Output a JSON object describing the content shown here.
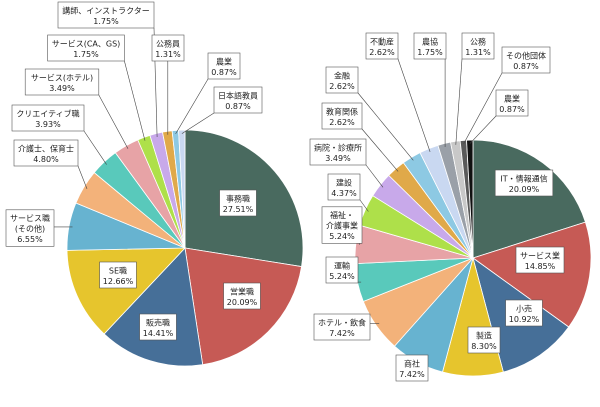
{
  "chart_data": [
    {
      "type": "pie",
      "title": "",
      "series": [
        {
          "label": "事務職",
          "value": 27.51,
          "value_label": "27.51%",
          "color": "#496a5f"
        },
        {
          "label": "営業職",
          "value": 20.09,
          "value_label": "20.09%",
          "color": "#c65a55"
        },
        {
          "label": "販売職",
          "value": 14.41,
          "value_label": "14.41%",
          "color": "#466f98"
        },
        {
          "label": "SE職",
          "value": 12.66,
          "value_label": "12.66%",
          "color": "#e6c52d"
        },
        {
          "label": "サービス職\n(その他)",
          "value": 6.55,
          "value_label": "6.55%",
          "color": "#67b3d0"
        },
        {
          "label": "介護士、保育士",
          "value": 4.8,
          "value_label": "4.80%",
          "color": "#f3b27a"
        },
        {
          "label": "クリエイティブ職",
          "value": 3.93,
          "value_label": "3.93%",
          "color": "#59c9bb"
        },
        {
          "label": "サービス(ホテル)",
          "value": 3.49,
          "value_label": "3.49%",
          "color": "#e7a3a6"
        },
        {
          "label": "サービス(CA、GS)",
          "value": 1.75,
          "value_label": "1.75%",
          "color": "#aee04a"
        },
        {
          "label": "講師、インストラクター",
          "value": 1.75,
          "value_label": "1.75%",
          "color": "#c8a9ea"
        },
        {
          "label": "公務員",
          "value": 1.31,
          "value_label": "1.31%",
          "color": "#e0a949"
        },
        {
          "label": "農業",
          "value": 0.87,
          "value_label": "0.87%",
          "color": "#8dc9e3"
        },
        {
          "label": "日本語教員",
          "value": 0.87,
          "value_label": "0.87%",
          "color": "#c9d8f1"
        }
      ]
    },
    {
      "type": "pie",
      "title": "",
      "series": [
        {
          "label": "IT・情報通信",
          "value": 20.09,
          "value_label": "20.09%",
          "color": "#496a5f"
        },
        {
          "label": "サービス業",
          "value": 14.85,
          "value_label": "14.85%",
          "color": "#c65a55"
        },
        {
          "label": "小売",
          "value": 10.92,
          "value_label": "10.92%",
          "color": "#466f98"
        },
        {
          "label": "製造",
          "value": 8.3,
          "value_label": "8.30%",
          "color": "#e6c52d"
        },
        {
          "label": "商社",
          "value": 7.42,
          "value_label": "7.42%",
          "color": "#67b3d0"
        },
        {
          "label": "ホテル・飲食",
          "value": 7.42,
          "value_label": "7.42%",
          "color": "#f3b27a"
        },
        {
          "label": "運輸",
          "value": 5.24,
          "value_label": "5.24%",
          "color": "#59c9bb"
        },
        {
          "label": "福祉・\n介護事業",
          "value": 5.24,
          "value_label": "5.24%",
          "color": "#e7a3a6"
        },
        {
          "label": "建設",
          "value": 4.37,
          "value_label": "4.37%",
          "color": "#aee04a"
        },
        {
          "label": "病院・診療所",
          "value": 3.49,
          "value_label": "3.49%",
          "color": "#c8a9ea"
        },
        {
          "label": "教育関係",
          "value": 2.62,
          "value_label": "2.62%",
          "color": "#e0a949"
        },
        {
          "label": "金融",
          "value": 2.62,
          "value_label": "2.62%",
          "color": "#8dc9e3"
        },
        {
          "label": "不動産",
          "value": 2.62,
          "value_label": "2.62%",
          "color": "#c9d8f1"
        },
        {
          "label": "農協",
          "value": 1.75,
          "value_label": "1.75%",
          "color": "#9aa0a8"
        },
        {
          "label": "公務",
          "value": 1.31,
          "value_label": "1.31%",
          "color": "#c8c8c8"
        },
        {
          "label": "その他団体",
          "value": 0.87,
          "value_label": "0.87%",
          "color": "#5a5a5a"
        },
        {
          "label": "農業",
          "value": 0.87,
          "value_label": "0.87%",
          "color": "#111111"
        }
      ]
    }
  ]
}
